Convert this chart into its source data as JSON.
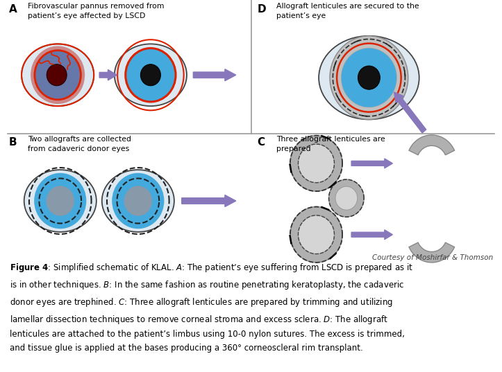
{
  "label_A": "A",
  "label_B": "B",
  "label_C": "C",
  "label_D": "D",
  "text_A": "Fibrovascular pannus removed from\npatient’s eye affected by LSCD",
  "text_B": "Two allografts are collected\nfrom cadaveric donor eyes",
  "text_C": "Three allograft lenticules are\nprepared",
  "text_D": "Allograft lenticules are secured to the\npatient’s eye",
  "courtesy": "Courtesy of Moshirfar & Thomson",
  "color_bg": "#ffffff",
  "color_eye_white": "#ddeeff",
  "color_eye_white2": "#f0f0f0",
  "color_iris_blue": "#44aadd",
  "color_iris_dark": "#5566aa",
  "color_pupil": "#111111",
  "color_red": "#dd2200",
  "color_gray_dark": "#888888",
  "color_gray_med": "#aaaaaa",
  "color_gray_light": "#cccccc",
  "color_gray_lenticule": "#b0b0b0",
  "color_purple": "#8877bb",
  "color_divider": "#999999",
  "color_pannus_bg": "#7788aa",
  "color_pannus_deep": "#660000"
}
